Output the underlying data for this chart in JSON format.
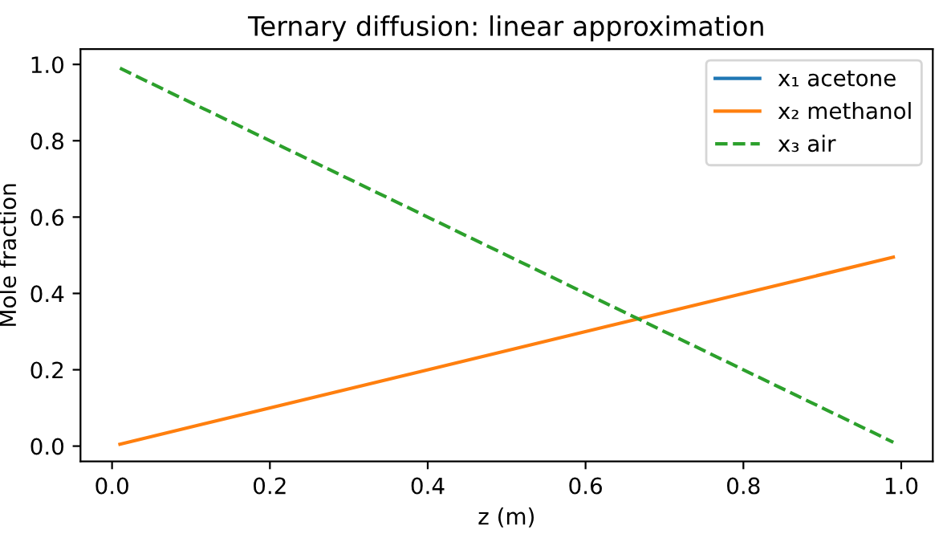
{
  "chart_data": {
    "type": "line",
    "title": "Ternary diffusion: linear approximation",
    "xlabel": "z (m)",
    "ylabel": "Mole fraction",
    "series": [
      {
        "name": "x₁ acetone",
        "color": "#1f77b4",
        "values": [
          null,
          null
        ],
        "line_style": "solid"
      },
      {
        "name": "x₂ methanol",
        "color": "#ff7f0e",
        "values": [
          0.005,
          0.495
        ],
        "line_style": "solid"
      },
      {
        "name": "x₃ air",
        "color": "#2ca02c",
        "values": [
          0.99,
          0.01
        ],
        "line_style": "dashed"
      }
    ],
    "x": [
      0.01,
      0.99
    ],
    "xlim": [
      -0.04,
      1.04
    ],
    "ylim": [
      -0.04,
      1.04
    ],
    "xticks": [
      {
        "value": 0,
        "label": "0.0"
      },
      0.2,
      0.4,
      0.6,
      0.8,
      {
        "value": 1,
        "label": "1.0"
      }
    ],
    "yticks": [
      {
        "value": 0,
        "label": "0.0"
      },
      0.2,
      0.4,
      0.6,
      0.8,
      {
        "value": 1,
        "label": "1.0"
      }
    ],
    "grid": false,
    "legend": "top right",
    "marker": "none"
  }
}
